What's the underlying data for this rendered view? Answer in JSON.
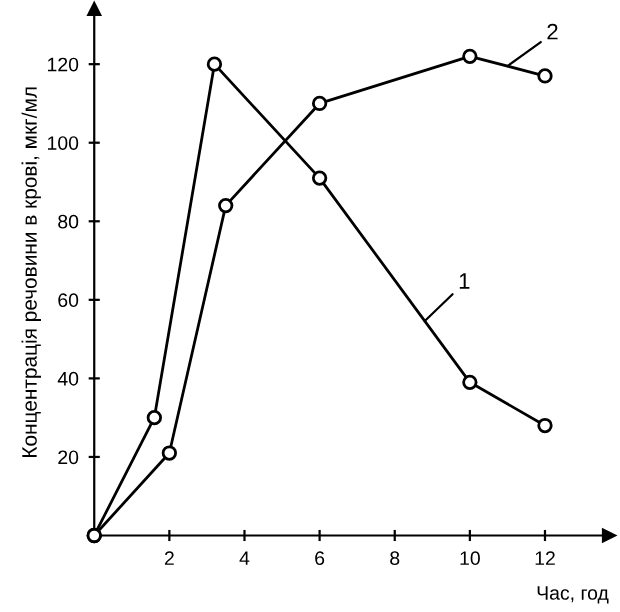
{
  "chart_data": {
    "type": "line",
    "xlabel": "Час, год",
    "ylabel": "Концентрація речовини в крові, мкг/мл",
    "series": [
      {
        "name": "1",
        "color": "#000000",
        "x": [
          0,
          1.6,
          3.2,
          6,
          10,
          12
        ],
        "values": [
          0,
          30,
          120,
          91,
          39,
          28
        ]
      },
      {
        "name": "2",
        "color": "#000000",
        "x": [
          0,
          2,
          3.5,
          6,
          10,
          12
        ],
        "values": [
          0,
          21,
          84,
          110,
          122,
          117
        ]
      }
    ],
    "xlim": [
      0,
      13.7
    ],
    "ylim": [
      0,
      134
    ],
    "xticks": [
      {
        "value": 0,
        "label": null
      },
      2,
      4,
      6,
      8,
      10,
      12
    ],
    "yticks": [
      {
        "value": 0,
        "label": null
      },
      20,
      40,
      60,
      80,
      100,
      120
    ],
    "marker": "circle",
    "line_style": "solid",
    "grid": false,
    "legend": false
  }
}
